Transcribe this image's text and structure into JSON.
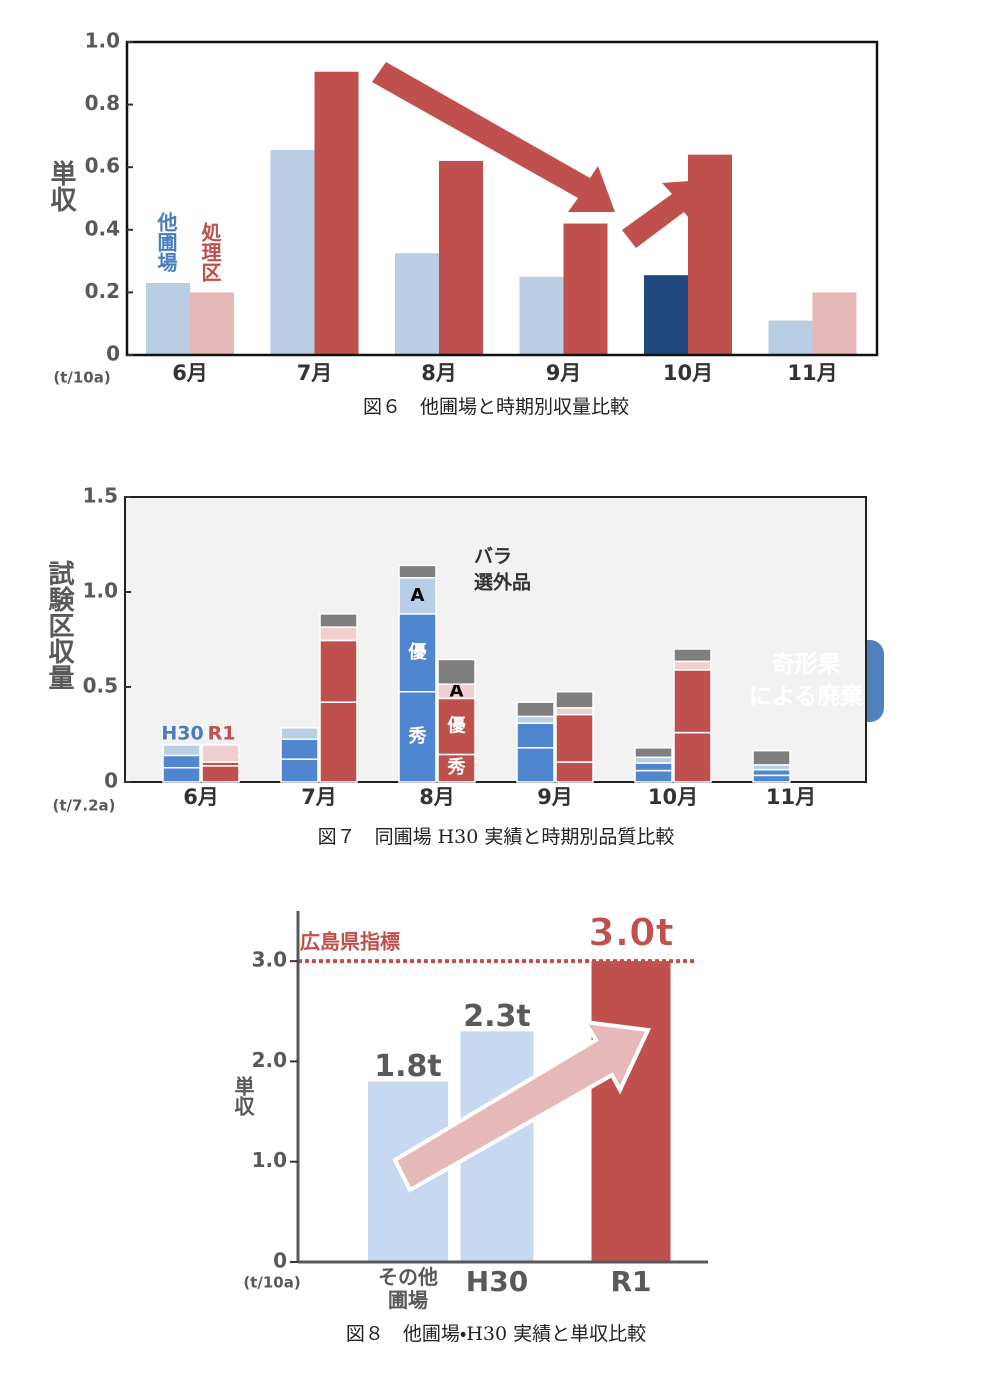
{
  "chart_data": [
    {
      "type": "bar",
      "caption": "図６　他圃場と時期別収量比較",
      "ylabel": "単収",
      "yunit": "(t/10a)",
      "categories": [
        "6月",
        "7月",
        "8月",
        "9月",
        "10月",
        "11月"
      ],
      "series": [
        {
          "name": "他圃場",
          "color": "#b9cde5",
          "colors": [
            "#b9cde5",
            "#b9cde5",
            "#b9cde5",
            "#b9cde5",
            "#1f497d",
            "#b9cde5"
          ],
          "values": [
            0.23,
            0.655,
            0.325,
            0.25,
            0.255,
            0.11
          ]
        },
        {
          "name": "処理区",
          "color": "#c0504d",
          "colors": [
            "#e6b9b8",
            "#c0504d",
            "#c0504d",
            "#c0504d",
            "#c0504d",
            "#e6b9b8"
          ],
          "values": [
            0.2,
            0.905,
            0.62,
            0.42,
            0.64,
            0.2
          ]
        }
      ],
      "ylim": [
        0,
        1
      ],
      "yticks": [
        0,
        0.2,
        0.4,
        0.6,
        0.8,
        {
          "value": 1,
          "label": "1.0"
        }
      ]
    },
    {
      "type": "stacked_bar",
      "caption": "図７　同圃場 H30 実績と時期別品質比較",
      "ylabel": "試験区収量",
      "yunit": "(t/7.2a)",
      "categories": [
        "6月",
        "7月",
        "8月",
        "9月",
        "10月",
        "11月"
      ],
      "series": [
        {
          "name": "H30",
          "color": "#4f86cf",
          "segments": [
            {
              "name": "秀",
              "color": "#4f86cf",
              "values": [
                0.075,
                0.12,
                0.475,
                0.18,
                0.06,
                0.035
              ]
            },
            {
              "name": "優",
              "color": "#4f86cf",
              "values": [
                0.065,
                0.105,
                0.41,
                0.13,
                0.04,
                0.03
              ]
            },
            {
              "name": "A",
              "color": "#b8cde6",
              "values": [
                0.055,
                0.06,
                0.19,
                0.035,
                0.03,
                0.025
              ]
            },
            {
              "color": "#7f7f7f",
              "values": [
                0,
                0,
                0.065,
                0.075,
                0.05,
                0.075
              ]
            }
          ]
        },
        {
          "name": "R1",
          "color": "#c0504d",
          "segments": [
            {
              "name": "秀",
              "color": "#c0504d",
              "values": [
                0.085,
                0.42,
                0.145,
                0.105,
                0.26,
                null
              ]
            },
            {
              "name": "優",
              "color": "#c0504d",
              "values": [
                0.02,
                0.325,
                0.295,
                0.25,
                0.33,
                null
              ]
            },
            {
              "name": "A",
              "color": "#f2cfcf",
              "values": [
                0.09,
                0.07,
                0.075,
                0.035,
                0.045,
                null
              ]
            },
            {
              "color": "#7f7f7f",
              "values": [
                0,
                0.07,
                0.13,
                0.085,
                0.065,
                null
              ]
            }
          ]
        }
      ],
      "annotations": [
        "バラ",
        "選外品",
        "奇形果",
        "による廃棄"
      ],
      "ylim": [
        0,
        1.5
      ],
      "yticks": [
        0,
        0.5,
        {
          "value": 1,
          "label": "1.0"
        },
        1.5
      ]
    },
    {
      "type": "bar",
      "caption": "図８　他圃場・H30 実績と単収比較",
      "ylabel": "単収",
      "yunit": "(t/10a)",
      "categories": [
        "その他\n圃場",
        "H30",
        "R1"
      ],
      "values": [
        1.8,
        2.3,
        3.0
      ],
      "value_labels": [
        "1.8t",
        "2.3t",
        "3.0t"
      ],
      "colors": [
        "#c6d9f1",
        "#c6d9f1",
        "#c0504d"
      ],
      "reference": {
        "value": 3.0,
        "label": "広島県指標",
        "color": "#c0504d"
      },
      "ylim": [
        0,
        3.5
      ],
      "yticks": [
        0,
        {
          "value": 1,
          "label": "1.0"
        },
        {
          "value": 2,
          "label": "2.0"
        },
        {
          "value": 3,
          "label": "3.0"
        }
      ]
    }
  ]
}
